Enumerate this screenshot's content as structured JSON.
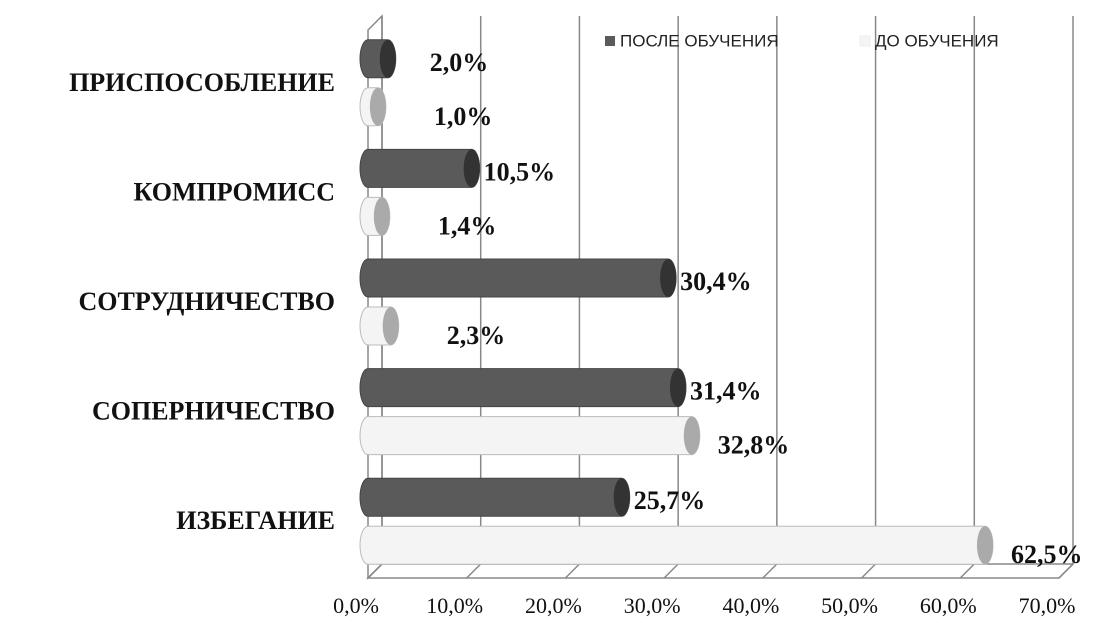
{
  "chart_data": {
    "type": "bar",
    "orientation": "horizontal",
    "categories": [
      "ПРИСПОСОБЛЕНИЕ",
      "КОМПРОМИСС",
      "СОТРУДНИЧЕСТВО",
      "СОПЕРНИЧЕСТВО",
      "ИЗБЕГАНИЕ"
    ],
    "series": [
      {
        "name": "ПОСЛЕ ОБУЧЕНИЯ",
        "color": "#5a5a5a",
        "values": [
          2.0,
          10.5,
          30.4,
          31.4,
          25.7
        ],
        "value_labels": [
          "2,0%",
          "10,5%",
          "30,4%",
          "31,4%",
          "25,7%"
        ]
      },
      {
        "name": "ДО ОБУЧЕНИЯ",
        "color": "#f4f4f4",
        "values": [
          1.0,
          1.4,
          2.3,
          32.8,
          62.5
        ],
        "value_labels": [
          "1,0%",
          "1,4%",
          "2,3%",
          "32,8%",
          "62,5%"
        ]
      }
    ],
    "xlim": [
      0,
      70
    ],
    "xticks": [
      {
        "value": 0,
        "label": "0,0%"
      },
      {
        "value": 10,
        "label": "10,0%"
      },
      {
        "value": 20,
        "label": "20,0%"
      },
      {
        "value": 30,
        "label": "30,0%"
      },
      {
        "value": 40,
        "label": "40,0%"
      },
      {
        "value": 50,
        "label": "50,0%"
      },
      {
        "value": 60,
        "label": "60,0%"
      },
      {
        "value": 70,
        "label": "70,0%"
      }
    ],
    "grid": true,
    "legend": "top"
  }
}
